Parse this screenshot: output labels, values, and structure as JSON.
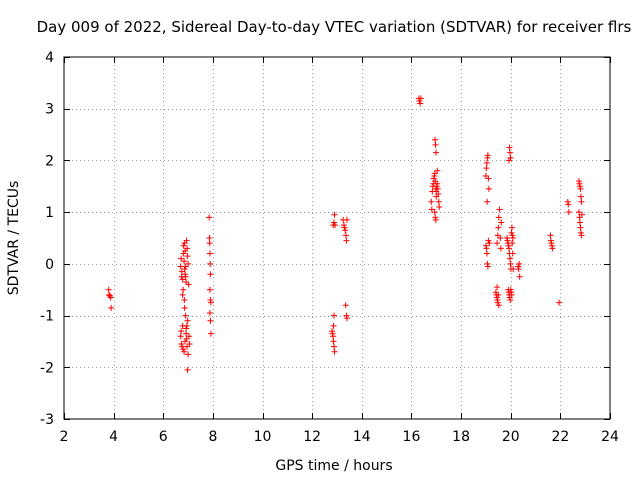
{
  "chart_data": {
    "type": "scatter",
    "title": "Day 009 of 2022, Sidereal Day-to-day VTEC variation (SDTVAR) for receiver flrs",
    "xlabel": "GPS time / hours",
    "ylabel": "SDTVAR / TECUs",
    "xlim": [
      2,
      24
    ],
    "ylim": [
      -3,
      4
    ],
    "xticks": [
      2,
      4,
      6,
      8,
      10,
      12,
      14,
      16,
      18,
      20,
      22,
      24
    ],
    "yticks": [
      -3,
      -2,
      -1,
      0,
      1,
      2,
      3,
      4
    ],
    "grid": true,
    "marker": "+",
    "color": "#ff0000",
    "series": [
      {
        "name": "SDTVAR",
        "points": [
          [
            3.8,
            -0.5
          ],
          [
            3.82,
            -0.6
          ],
          [
            3.85,
            -0.62
          ],
          [
            3.88,
            -0.65
          ],
          [
            3.9,
            -0.85
          ],
          [
            6.7,
            -0.05
          ],
          [
            6.72,
            0.1
          ],
          [
            6.75,
            -0.15
          ],
          [
            6.78,
            -0.3
          ],
          [
            6.8,
            -0.5
          ],
          [
            6.82,
            0.35
          ],
          [
            6.85,
            -0.7
          ],
          [
            6.7,
            -1.4
          ],
          [
            6.73,
            -1.55
          ],
          [
            6.76,
            -1.6
          ],
          [
            6.8,
            -1.65
          ],
          [
            6.84,
            -1.7
          ],
          [
            6.88,
            -1.5
          ],
          [
            6.92,
            -1.35
          ],
          [
            6.95,
            -1.2
          ],
          [
            6.98,
            -1.1
          ],
          [
            6.9,
            -1.0
          ],
          [
            6.86,
            -0.85
          ],
          [
            6.82,
            0.2
          ],
          [
            6.84,
            0.05
          ],
          [
            6.86,
            -0.1
          ],
          [
            6.88,
            -0.2
          ],
          [
            6.9,
            -0.25
          ],
          [
            6.92,
            -0.35
          ],
          [
            6.94,
            0.45
          ],
          [
            6.96,
            0.3
          ],
          [
            6.98,
            0.15
          ],
          [
            7.0,
            0.0
          ],
          [
            7.02,
            -0.4
          ],
          [
            6.88,
            0.25
          ],
          [
            6.9,
            -0.05
          ],
          [
            6.92,
            -1.25
          ],
          [
            6.94,
            -1.45
          ],
          [
            6.96,
            -1.6
          ],
          [
            7.0,
            -1.75
          ],
          [
            6.98,
            -2.05
          ],
          [
            6.78,
            -0.6
          ],
          [
            6.74,
            -0.25
          ],
          [
            6.72,
            -1.3
          ],
          [
            6.78,
            -1.2
          ],
          [
            7.04,
            -1.4
          ],
          [
            7.06,
            -1.55
          ],
          [
            6.86,
            0.4
          ],
          [
            7.85,
            0.9
          ],
          [
            7.86,
            0.5
          ],
          [
            7.87,
            0.4
          ],
          [
            7.88,
            0.2
          ],
          [
            7.89,
            0.0
          ],
          [
            7.9,
            -0.2
          ],
          [
            7.88,
            -0.5
          ],
          [
            7.9,
            -0.7
          ],
          [
            7.92,
            -0.75
          ],
          [
            7.88,
            -0.95
          ],
          [
            7.9,
            -1.1
          ],
          [
            7.92,
            -1.35
          ],
          [
            12.8,
            -1.3
          ],
          [
            12.82,
            -1.35
          ],
          [
            12.84,
            -1.4
          ],
          [
            12.86,
            -1.5
          ],
          [
            12.88,
            -1.6
          ],
          [
            12.9,
            -1.7
          ],
          [
            12.86,
            -1.2
          ],
          [
            12.88,
            -1.0
          ],
          [
            12.85,
            0.75
          ],
          [
            12.88,
            0.8
          ],
          [
            12.9,
            0.95
          ],
          [
            12.92,
            0.75
          ],
          [
            13.25,
            0.85
          ],
          [
            13.28,
            0.75
          ],
          [
            13.3,
            0.7
          ],
          [
            13.33,
            0.65
          ],
          [
            13.36,
            0.55
          ],
          [
            13.38,
            0.45
          ],
          [
            13.4,
            0.85
          ],
          [
            13.35,
            -0.8
          ],
          [
            13.38,
            -1.0
          ],
          [
            13.4,
            -1.05
          ],
          [
            16.3,
            3.2
          ],
          [
            16.32,
            3.15
          ],
          [
            16.35,
            3.1
          ],
          [
            16.38,
            3.2
          ],
          [
            16.8,
            1.2
          ],
          [
            16.82,
            1.05
          ],
          [
            16.84,
            1.4
          ],
          [
            16.86,
            1.5
          ],
          [
            16.88,
            1.55
          ],
          [
            16.9,
            1.65
          ],
          [
            16.92,
            1.7
          ],
          [
            16.94,
            1.75
          ],
          [
            16.96,
            1.6
          ],
          [
            16.98,
            1.45
          ],
          [
            17.0,
            1.4
          ],
          [
            17.02,
            1.5
          ],
          [
            17.04,
            1.55
          ],
          [
            17.06,
            1.45
          ],
          [
            17.08,
            1.35
          ],
          [
            17.1,
            1.2
          ],
          [
            17.12,
            1.1
          ],
          [
            16.95,
            2.4
          ],
          [
            16.97,
            2.3
          ],
          [
            16.99,
            2.15
          ],
          [
            16.94,
            1.0
          ],
          [
            16.96,
            0.9
          ],
          [
            16.98,
            0.85
          ],
          [
            17.04,
            1.8
          ],
          [
            17.0,
            1.3
          ],
          [
            19.0,
            0.35
          ],
          [
            19.02,
            0.3
          ],
          [
            19.04,
            0.2
          ],
          [
            19.06,
            0.0
          ],
          [
            19.08,
            -0.05
          ],
          [
            19.1,
            0.45
          ],
          [
            19.0,
            1.7
          ],
          [
            19.02,
            1.85
          ],
          [
            19.04,
            1.95
          ],
          [
            19.06,
            2.05
          ],
          [
            19.08,
            2.1
          ],
          [
            19.1,
            1.65
          ],
          [
            19.12,
            1.45
          ],
          [
            19.05,
            1.2
          ],
          [
            19.14,
            0.4
          ],
          [
            19.4,
            -0.55
          ],
          [
            19.42,
            -0.6
          ],
          [
            19.44,
            -0.65
          ],
          [
            19.46,
            -0.7
          ],
          [
            19.48,
            -0.75
          ],
          [
            19.5,
            -0.6
          ],
          [
            19.52,
            -0.8
          ],
          [
            19.45,
            0.4
          ],
          [
            19.48,
            0.55
          ],
          [
            19.5,
            0.7
          ],
          [
            19.52,
            0.9
          ],
          [
            19.55,
            1.05
          ],
          [
            19.58,
            0.5
          ],
          [
            19.6,
            0.3
          ],
          [
            19.62,
            0.8
          ],
          [
            19.45,
            -0.45
          ],
          [
            19.85,
            0.5
          ],
          [
            19.87,
            0.45
          ],
          [
            19.89,
            0.4
          ],
          [
            19.91,
            0.35
          ],
          [
            19.93,
            0.3
          ],
          [
            19.95,
            0.2
          ],
          [
            19.97,
            0.1
          ],
          [
            19.99,
            0.0
          ],
          [
            20.01,
            -0.1
          ],
          [
            20.03,
            0.6
          ],
          [
            20.05,
            0.7
          ],
          [
            20.07,
            0.55
          ],
          [
            20.09,
            0.5
          ],
          [
            19.95,
            2.25
          ],
          [
            19.97,
            2.15
          ],
          [
            19.99,
            2.05
          ],
          [
            19.93,
            2.0
          ],
          [
            19.9,
            -0.5
          ],
          [
            19.92,
            -0.55
          ],
          [
            19.94,
            -0.6
          ],
          [
            19.96,
            -0.65
          ],
          [
            19.98,
            -0.7
          ],
          [
            20.0,
            -0.5
          ],
          [
            20.02,
            -0.55
          ],
          [
            20.04,
            -0.6
          ],
          [
            20.06,
            0.4
          ],
          [
            20.08,
            0.2
          ],
          [
            20.1,
            -0.1
          ],
          [
            20.3,
            -0.05
          ],
          [
            20.32,
            -0.1
          ],
          [
            20.34,
            0.0
          ],
          [
            20.36,
            -0.25
          ],
          [
            21.6,
            0.55
          ],
          [
            21.62,
            0.45
          ],
          [
            21.64,
            0.4
          ],
          [
            21.66,
            0.35
          ],
          [
            21.68,
            0.3
          ],
          [
            21.95,
            -0.75
          ],
          [
            22.3,
            1.2
          ],
          [
            22.32,
            1.15
          ],
          [
            22.34,
            1.0
          ],
          [
            22.75,
            1.6
          ],
          [
            22.77,
            1.55
          ],
          [
            22.79,
            1.5
          ],
          [
            22.81,
            1.45
          ],
          [
            22.83,
            1.3
          ],
          [
            22.85,
            1.2
          ],
          [
            22.75,
            1.0
          ],
          [
            22.77,
            0.9
          ],
          [
            22.79,
            0.8
          ],
          [
            22.81,
            0.7
          ],
          [
            22.83,
            0.6
          ],
          [
            22.85,
            0.55
          ],
          [
            22.87,
            0.95
          ]
        ]
      }
    ]
  }
}
